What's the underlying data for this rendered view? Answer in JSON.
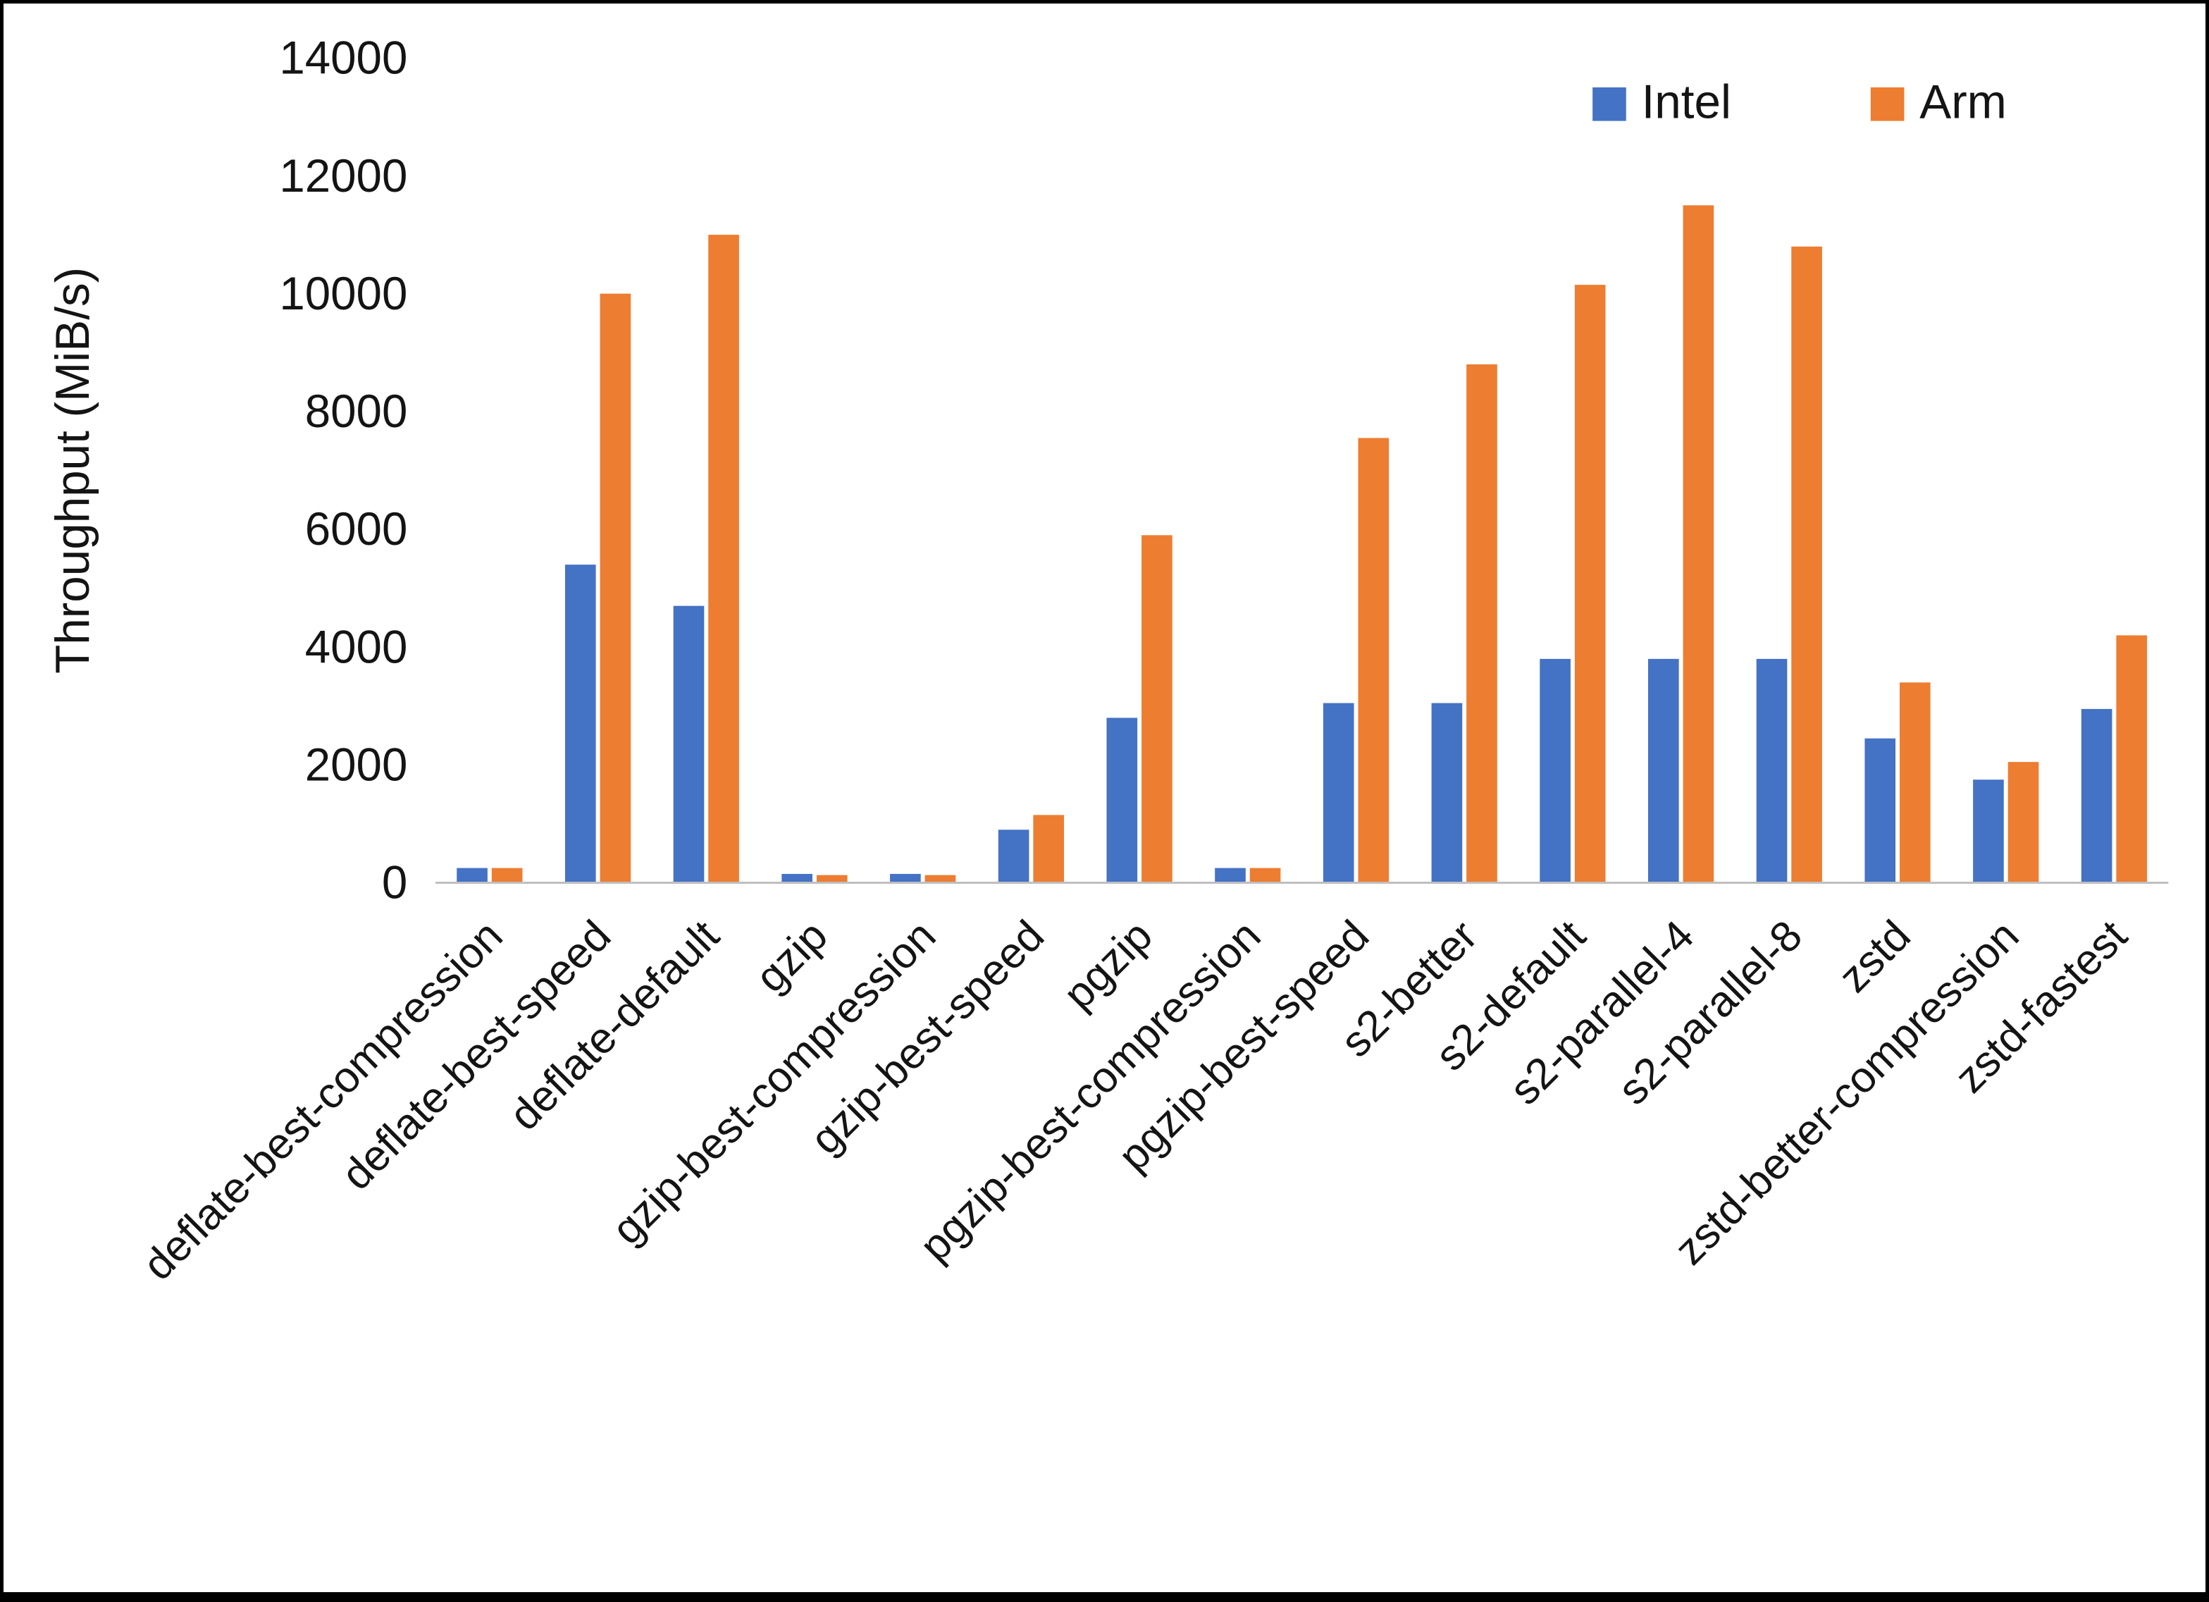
{
  "chart_data": {
    "type": "bar",
    "title": "",
    "xlabel": "",
    "ylabel": "Throughput (MiB/s)",
    "ylim": [
      0,
      14000
    ],
    "ytick_step": 2000,
    "grid": false,
    "legend_position": "top-right",
    "categories": [
      "deflate-best-compression",
      "deflate-best-speed",
      "deflate-default",
      "gzip",
      "gzip-best-compression",
      "gzip-best-speed",
      "pgzip",
      "pgzip-best-compression",
      "pgzip-best-speed",
      "s2-better",
      "s2-default",
      "s2-parallel-4",
      "s2-parallel-8",
      "zstd",
      "zstd-better-compression",
      "zstd-fastest"
    ],
    "series": [
      {
        "name": "Intel",
        "color": "#4472C4",
        "values": [
          250,
          5400,
          4700,
          150,
          150,
          900,
          2800,
          250,
          3050,
          3050,
          3800,
          3800,
          3800,
          2450,
          1750,
          2950
        ]
      },
      {
        "name": "Arm",
        "color": "#ED7D31",
        "values": [
          250,
          10000,
          11000,
          130,
          130,
          1150,
          5900,
          250,
          7550,
          8800,
          10150,
          11500,
          10800,
          3400,
          2050,
          4200
        ]
      }
    ]
  }
}
